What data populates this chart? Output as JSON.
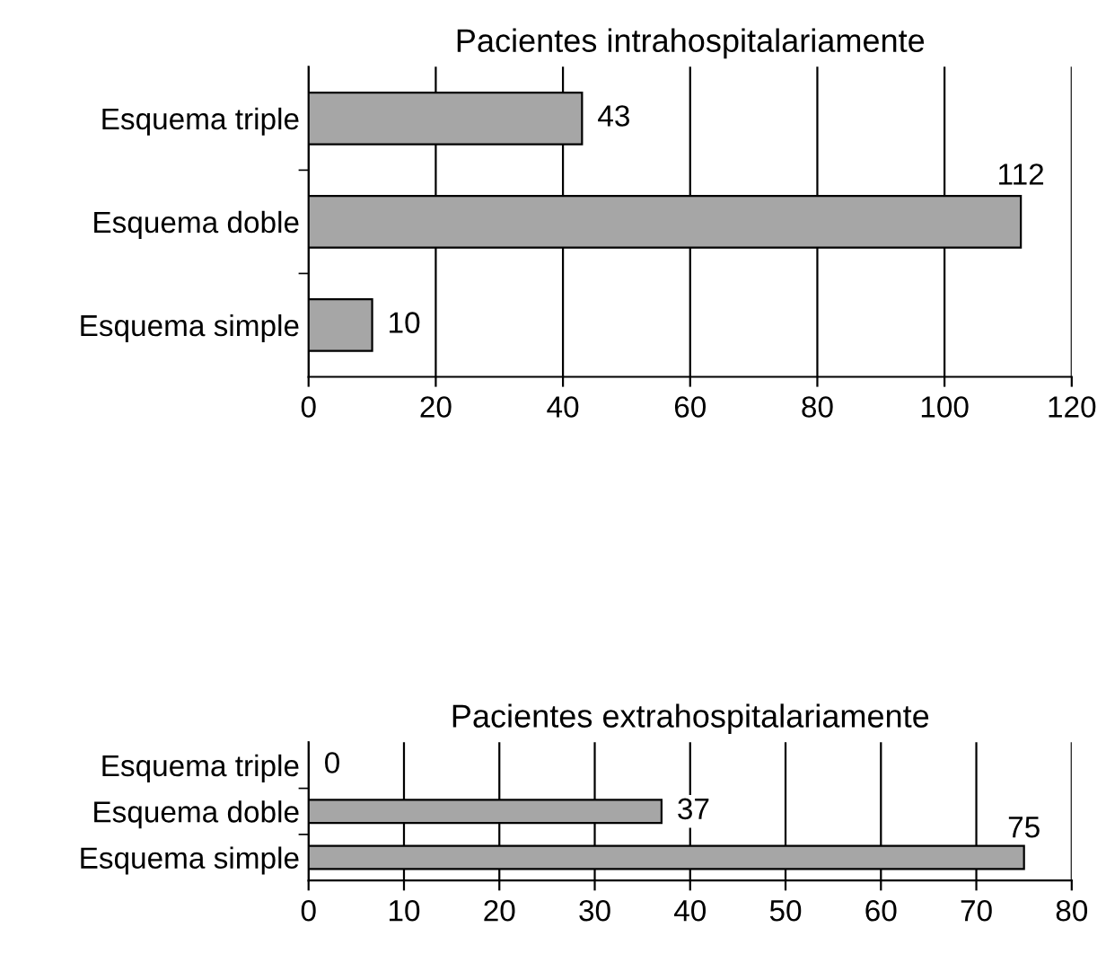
{
  "chart_data": [
    {
      "type": "bar",
      "orientation": "horizontal",
      "title": "Pacientes intrahospitalariamente",
      "categories": [
        "Esquema triple",
        "Esquema doble",
        "Esquema simple"
      ],
      "values": [
        43,
        112,
        10
      ],
      "color": "#a6a6a6",
      "xlim": [
        0,
        120
      ],
      "xticks": [
        0,
        20,
        40,
        60,
        80,
        100,
        120
      ],
      "grid": "x",
      "data_labels": true
    },
    {
      "type": "bar",
      "orientation": "horizontal",
      "title": "Pacientes extrahospitalariamente",
      "categories": [
        "Esquema triple",
        "Esquema doble",
        "Esquema simple"
      ],
      "values": [
        0,
        37,
        75
      ],
      "color": "#a6a6a6",
      "xlim": [
        0,
        80
      ],
      "xticks": [
        0,
        10,
        20,
        30,
        40,
        50,
        60,
        70,
        80
      ],
      "grid": "x",
      "data_labels": true
    }
  ]
}
